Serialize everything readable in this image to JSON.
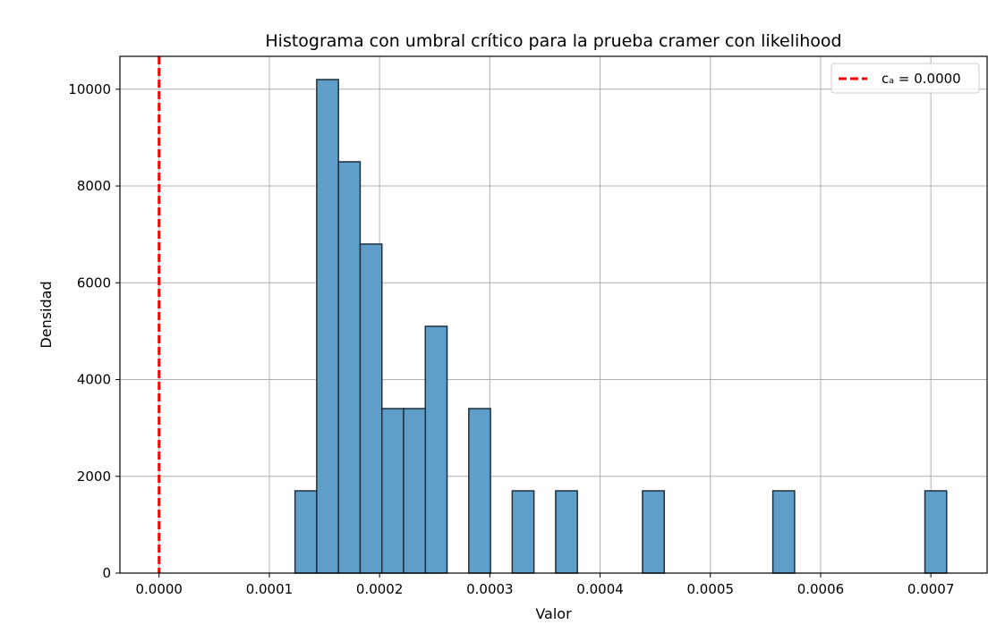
{
  "chart_data": {
    "type": "bar",
    "title": "Histograma con umbral crítico para la prueba cramer con  likelihood",
    "xlabel": "Valor",
    "ylabel": "Densidad",
    "xlim": [
      -3.55e-05,
      0.000751
    ],
    "ylim": [
      0,
      10680
    ],
    "grid": true,
    "legend_position": "top-right",
    "bar_color": "#5f9ec9",
    "bar_edge_color": "#1f2f3a",
    "bin_width": 1.97e-05,
    "bins": [
      {
        "x_start": 0.0001233,
        "density": 1700
      },
      {
        "x_start": 0.000143,
        "density": 10200
      },
      {
        "x_start": 0.0001627,
        "density": 8500
      },
      {
        "x_start": 0.0001824,
        "density": 6800
      },
      {
        "x_start": 0.0002021,
        "density": 3400
      },
      {
        "x_start": 0.0002218,
        "density": 3400
      },
      {
        "x_start": 0.0002415,
        "density": 5100
      },
      {
        "x_start": 0.0002809,
        "density": 3400
      },
      {
        "x_start": 0.0003203,
        "density": 1700
      },
      {
        "x_start": 0.0003597,
        "density": 1700
      },
      {
        "x_start": 0.0004385,
        "density": 1700
      },
      {
        "x_start": 0.0005567,
        "density": 1700
      },
      {
        "x_start": 0.0006946,
        "density": 1700
      }
    ],
    "x_ticks": [
      {
        "value": 0.0,
        "label": "0.0000"
      },
      {
        "value": 0.0001,
        "label": "0.0001"
      },
      {
        "value": 0.0002,
        "label": "0.0002"
      },
      {
        "value": 0.0003,
        "label": "0.0003"
      },
      {
        "value": 0.0004,
        "label": "0.0004"
      },
      {
        "value": 0.0005,
        "label": "0.0005"
      },
      {
        "value": 0.0006,
        "label": "0.0006"
      },
      {
        "value": 0.0007,
        "label": "0.0007"
      }
    ],
    "y_ticks": [
      {
        "value": 0,
        "label": "0"
      },
      {
        "value": 2000,
        "label": "2000"
      },
      {
        "value": 4000,
        "label": "4000"
      },
      {
        "value": 6000,
        "label": "6000"
      },
      {
        "value": 8000,
        "label": "8000"
      },
      {
        "value": 10000,
        "label": "10000"
      }
    ],
    "threshold_line": {
      "x": 0.0,
      "label": "cₐ = 0.0000",
      "color": "#ff0000",
      "style": "dashed"
    }
  }
}
